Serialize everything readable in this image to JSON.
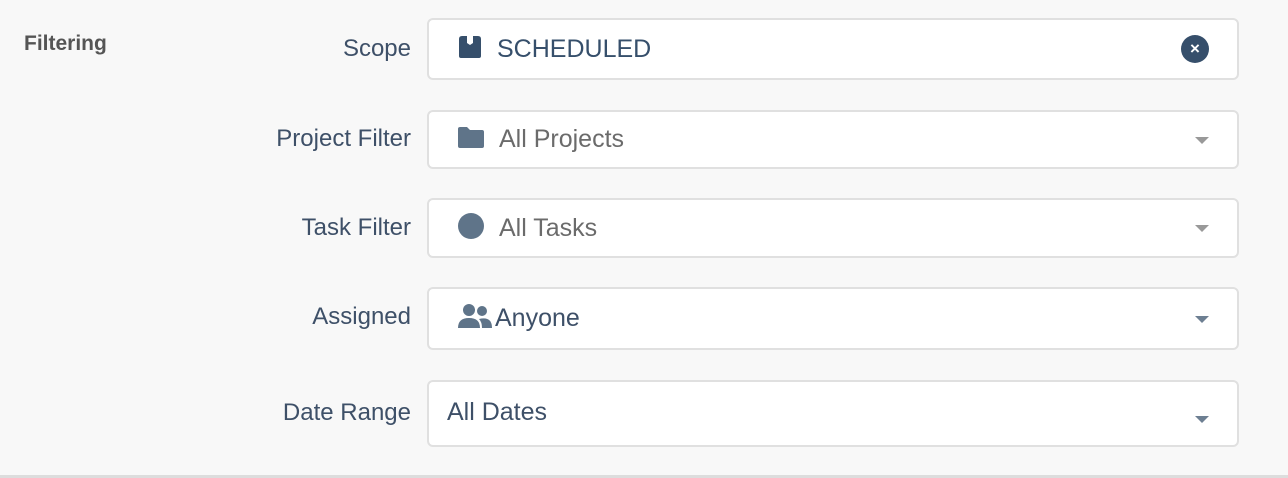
{
  "section_title": "Filtering",
  "filters": [
    {
      "label": "Scope",
      "value": "SCHEDULED",
      "icon": "box-icon",
      "control": "clear"
    },
    {
      "label": "Project Filter",
      "value": "All Projects",
      "icon": "folder-icon",
      "control": "dropdown"
    },
    {
      "label": "Task Filter",
      "value": "All Tasks",
      "icon": "circle-icon",
      "control": "dropdown"
    },
    {
      "label": "Assigned",
      "value": "Anyone",
      "icon": "users-icon",
      "control": "dropdown"
    },
    {
      "label": "Date Range",
      "value": "All Dates",
      "control": "dropdown"
    }
  ],
  "colors": {
    "accent": "#364f6b",
    "label": "#3e5068",
    "value": "#6b6b6b"
  }
}
